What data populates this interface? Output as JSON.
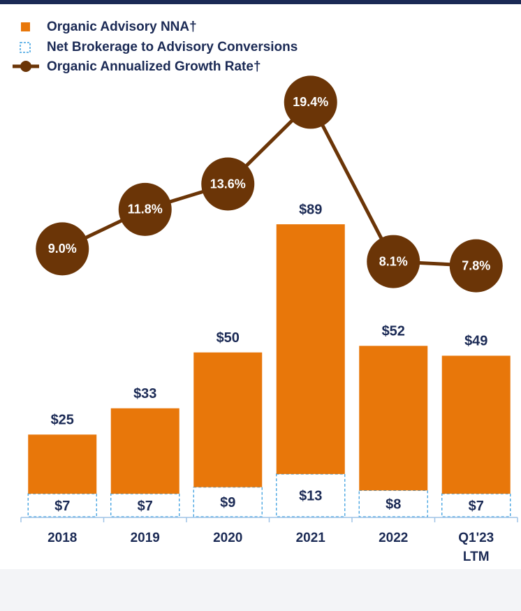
{
  "chart_data": {
    "type": "bar",
    "categories": [
      "2018",
      "2019",
      "2020",
      "2021",
      "2022",
      "Q1'23\nLTM"
    ],
    "series": [
      {
        "name": "Organic Advisory NNA†",
        "color": "#e8770a",
        "values": [
          18,
          26,
          41,
          76,
          44,
          42
        ]
      },
      {
        "name": "Net Brokerage to Advisory Conversions",
        "color": "#3a9fe0",
        "values": [
          7,
          7,
          9,
          13,
          8,
          7
        ],
        "value_labels": [
          "$7",
          "$7",
          "$9",
          "$13",
          "$8",
          "$7"
        ]
      },
      {
        "name": "Organic Annualized Growth Rate†",
        "color": "#6b3507",
        "type": "line",
        "axis": "y2",
        "values": [
          9.0,
          11.8,
          13.6,
          19.4,
          8.1,
          7.8
        ],
        "value_labels": [
          "9.0%",
          "11.8%",
          "13.6%",
          "19.4%",
          "8.1%",
          "7.8%"
        ]
      }
    ],
    "totals": [
      25,
      33,
      50,
      89,
      52,
      49
    ],
    "total_labels": [
      "$25",
      "$33",
      "$50",
      "$89",
      "$52",
      "$49"
    ],
    "ylim": [
      0,
      136
    ],
    "y2lim": [
      -10,
      21.7
    ]
  }
}
